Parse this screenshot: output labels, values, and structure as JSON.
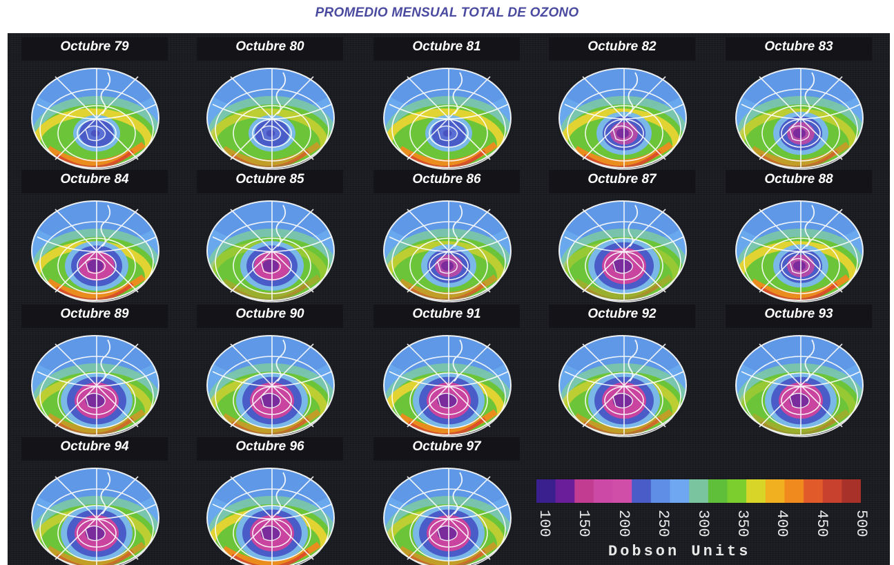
{
  "title": "PROMEDIO MENSUAL TOTAL DE OZONO",
  "panels": [
    {
      "label": "Octubre 79",
      "hole": "weak",
      "ring": "strong"
    },
    {
      "label": "Octubre 80",
      "hole": "weak",
      "ring": "medium"
    },
    {
      "label": "Octubre 81",
      "hole": "weak",
      "ring": "strong"
    },
    {
      "label": "Octubre 82",
      "hole": "small",
      "ring": "strong"
    },
    {
      "label": "Octubre 83",
      "hole": "small",
      "ring": "medium"
    },
    {
      "label": "Octubre 84",
      "hole": "medium",
      "ring": "strong"
    },
    {
      "label": "Octubre 85",
      "hole": "medium",
      "ring": "weak"
    },
    {
      "label": "Octubre 86",
      "hole": "small",
      "ring": "medium"
    },
    {
      "label": "Octubre 87",
      "hole": "large",
      "ring": "weak"
    },
    {
      "label": "Octubre 88",
      "hole": "small",
      "ring": "strong"
    },
    {
      "label": "Octubre 89",
      "hole": "large",
      "ring": "medium"
    },
    {
      "label": "Octubre 90",
      "hole": "large",
      "ring": "medium"
    },
    {
      "label": "Octubre 91",
      "hole": "large",
      "ring": "strong"
    },
    {
      "label": "Octubre 92",
      "hole": "large",
      "ring": "medium"
    },
    {
      "label": "Octubre 93",
      "hole": "large",
      "ring": "weak"
    },
    {
      "label": "Octubre 94",
      "hole": "large",
      "ring": "medium"
    },
    {
      "label": "Octubre 96",
      "hole": "large",
      "ring": "strong"
    },
    {
      "label": "Octubre 97",
      "hole": "large",
      "ring": "medium"
    }
  ],
  "scale": {
    "ticks": [
      "100",
      "150",
      "200",
      "250",
      "300",
      "350",
      "400",
      "450",
      "500"
    ],
    "units": "Dobson Units",
    "colors": [
      "#3a1f8f",
      "#6a1e9a",
      "#c23c92",
      "#cc4aa6",
      "#d04ea8",
      "#4a5cc8",
      "#5e8ee6",
      "#6fa8f0",
      "#7bc4a0",
      "#5fbf3a",
      "#7ccd2e",
      "#d9d428",
      "#f0b020",
      "#f08a1e",
      "#e05a2a",
      "#c8412e",
      "#a8322a"
    ]
  },
  "colors": {
    "background": "#1b1c21",
    "title": "#4a4aa0"
  }
}
